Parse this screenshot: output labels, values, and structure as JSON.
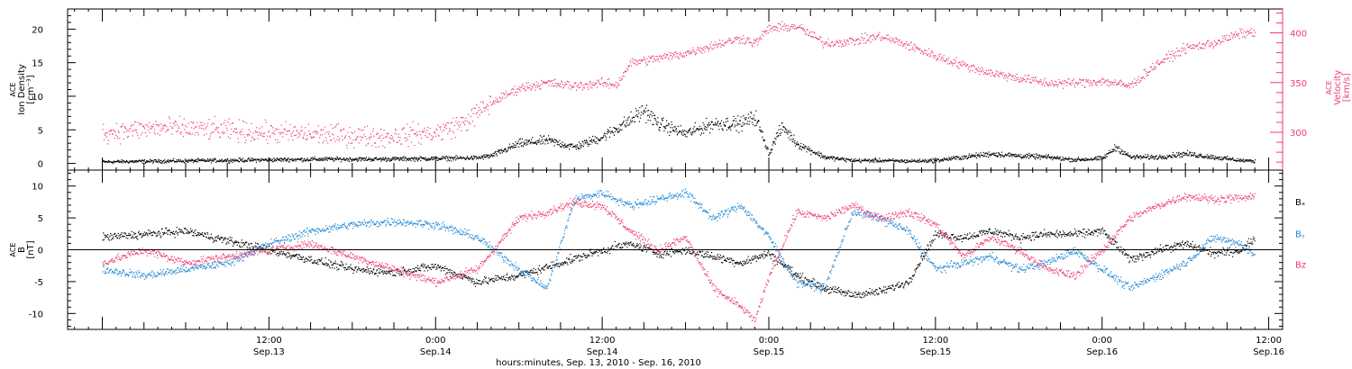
{
  "chart_data": [
    {
      "type": "scatter",
      "name": "ACE plasma panel",
      "ylabel_left": [
        "ACE",
        "Ion Density",
        "[cm⁻³]"
      ],
      "ylabel_right": [
        "ACE",
        "Velocity",
        "[km/s]"
      ],
      "ylim": [
        -1,
        23
      ],
      "ylim_right": [
        262,
        424
      ],
      "yticks": [
        0,
        5,
        10,
        15,
        20
      ],
      "yticks_right": [
        300,
        350,
        400
      ],
      "colors": {
        "density": "#000000",
        "velocity": "#ec3d6e"
      },
      "series": [
        {
          "name": "Ion Density",
          "axis": "left",
          "x_hours": [
            0,
            4,
            8,
            12,
            16,
            20,
            24,
            27,
            28,
            30,
            32,
            34,
            36,
            38,
            39,
            40,
            42,
            44,
            46,
            47,
            48,
            48.5,
            49,
            50,
            52,
            54,
            56,
            58,
            60,
            62,
            64,
            66,
            68,
            70,
            72,
            73,
            74,
            76,
            78,
            80,
            82,
            83
          ],
          "values": [
            0.3,
            0.4,
            0.5,
            0.6,
            0.7,
            0.7,
            0.8,
            0.9,
            1.2,
            3.0,
            3.5,
            2.5,
            4.0,
            6.5,
            8.0,
            6.0,
            4.5,
            6.0,
            6.0,
            7.0,
            1.5,
            4.0,
            5.5,
            3.0,
            1.0,
            0.5,
            0.5,
            0.4,
            0.5,
            1.0,
            1.5,
            1.2,
            1.0,
            0.6,
            0.8,
            2.5,
            1.0,
            1.0,
            1.5,
            1.0,
            0.5,
            0.4
          ]
        },
        {
          "name": "Velocity",
          "axis": "right",
          "x_hours": [
            0,
            4,
            8,
            12,
            16,
            20,
            24,
            26,
            28,
            30,
            32,
            34,
            36,
            37,
            38,
            40,
            42,
            44,
            46,
            47,
            48,
            50,
            52,
            54,
            56,
            58,
            60,
            62,
            64,
            66,
            68,
            70,
            72,
            74,
            76,
            78,
            80,
            82,
            83
          ],
          "values": [
            300,
            305,
            303,
            300,
            298,
            296,
            300,
            310,
            330,
            345,
            350,
            347,
            350,
            348,
            370,
            375,
            380,
            388,
            395,
            390,
            405,
            407,
            390,
            392,
            397,
            388,
            377,
            368,
            360,
            355,
            350,
            350,
            352,
            347,
            370,
            385,
            390,
            400,
            401
          ]
        }
      ]
    },
    {
      "type": "scatter",
      "name": "ACE magnetic field panel",
      "ylabel": [
        "ACE",
        "B",
        "[nT]"
      ],
      "ylim": [
        -12.5,
        12.5
      ],
      "yticks": [
        -10,
        -5,
        0,
        5,
        10
      ],
      "zero_line": true,
      "legend": {
        "placement": "right",
        "entries": [
          "Bₓ",
          "Bᵧ",
          "Bz"
        ]
      },
      "colors": {
        "bx": "#000000",
        "by": "#1a86d6",
        "bz": "#ec3d6e"
      },
      "series": [
        {
          "name": "Bₓ",
          "x_hours": [
            0,
            3,
            6,
            9,
            12,
            15,
            18,
            21,
            24,
            27,
            30,
            33,
            36,
            38,
            40,
            42,
            44,
            46,
            48,
            50,
            52,
            54,
            56,
            58,
            60,
            62,
            64,
            66,
            68,
            70,
            72,
            74,
            76,
            78,
            80,
            82,
            83
          ],
          "values": [
            2.0,
            2.5,
            3.0,
            1.5,
            0.0,
            -1.5,
            -3.0,
            -3.5,
            -2.5,
            -5.0,
            -4.0,
            -2.0,
            0.0,
            1.0,
            -0.5,
            0.0,
            -1.0,
            -2.0,
            -0.5,
            -4.0,
            -6.0,
            -7.0,
            -6.5,
            -5.0,
            2.5,
            2.0,
            3.0,
            2.0,
            2.5,
            2.5,
            3.0,
            -1.5,
            0.0,
            1.0,
            -0.5,
            0.0,
            2.0
          ]
        },
        {
          "name": "Bᵧ",
          "x_hours": [
            0,
            3,
            6,
            9,
            12,
            15,
            18,
            21,
            24,
            27,
            30,
            32,
            34,
            36,
            38,
            40,
            42,
            44,
            46,
            48,
            50,
            52,
            54,
            56,
            58,
            60,
            62,
            64,
            66,
            68,
            70,
            72,
            74,
            76,
            78,
            80,
            82,
            83
          ],
          "values": [
            -3.0,
            -4.0,
            -3.0,
            -2.0,
            1.0,
            3.0,
            4.0,
            4.5,
            4.0,
            2.0,
            -3.0,
            -6.0,
            8.0,
            9.0,
            7.0,
            8.0,
            9.0,
            5.0,
            7.0,
            2.0,
            -5.0,
            -6.0,
            6.0,
            5.0,
            3.0,
            -3.0,
            -2.0,
            -1.0,
            -3.0,
            -2.0,
            0.0,
            -3.0,
            -6.0,
            -4.0,
            -2.0,
            2.0,
            1.0,
            -1.0
          ]
        },
        {
          "name": "Bz",
          "x_hours": [
            0,
            3,
            6,
            9,
            12,
            15,
            18,
            21,
            24,
            27,
            30,
            32,
            34,
            36,
            38,
            40,
            42,
            44,
            46,
            47,
            48,
            50,
            52,
            54,
            56,
            58,
            60,
            62,
            64,
            66,
            68,
            70,
            72,
            74,
            76,
            78,
            80,
            82,
            83
          ],
          "values": [
            -2.0,
            0.0,
            -2.0,
            -1.0,
            0.0,
            1.0,
            -1.0,
            -3.0,
            -5.0,
            -3.0,
            5.0,
            6.0,
            7.5,
            7.0,
            3.0,
            0.0,
            2.0,
            -6.0,
            -9.0,
            -11.0,
            -4.0,
            6.0,
            5.0,
            7.0,
            5.0,
            6.0,
            4.0,
            -1.0,
            2.0,
            0.0,
            -3.0,
            -4.0,
            0.0,
            5.0,
            7.0,
            8.5,
            8.0,
            8.2,
            8.3
          ]
        }
      ]
    }
  ],
  "x_axis": {
    "range_hours": [
      -2.5,
      85
    ],
    "ticks": [
      {
        "hour": 12,
        "time": "12:00",
        "date": "Sep.13"
      },
      {
        "hour": 24,
        "time": "0:00",
        "date": "Sep.14"
      },
      {
        "hour": 36,
        "time": "12:00",
        "date": "Sep.14"
      },
      {
        "hour": 48,
        "time": "0:00",
        "date": "Sep.15"
      },
      {
        "hour": 60,
        "time": "12:00",
        "date": "Sep.15"
      },
      {
        "hour": 72,
        "time": "0:00",
        "date": "Sep.16"
      },
      {
        "hour": 84,
        "time": "12:00",
        "date": "Sep.16"
      }
    ],
    "label": "hours:minutes, Sep. 13, 2010 - Sep. 16, 2010"
  }
}
